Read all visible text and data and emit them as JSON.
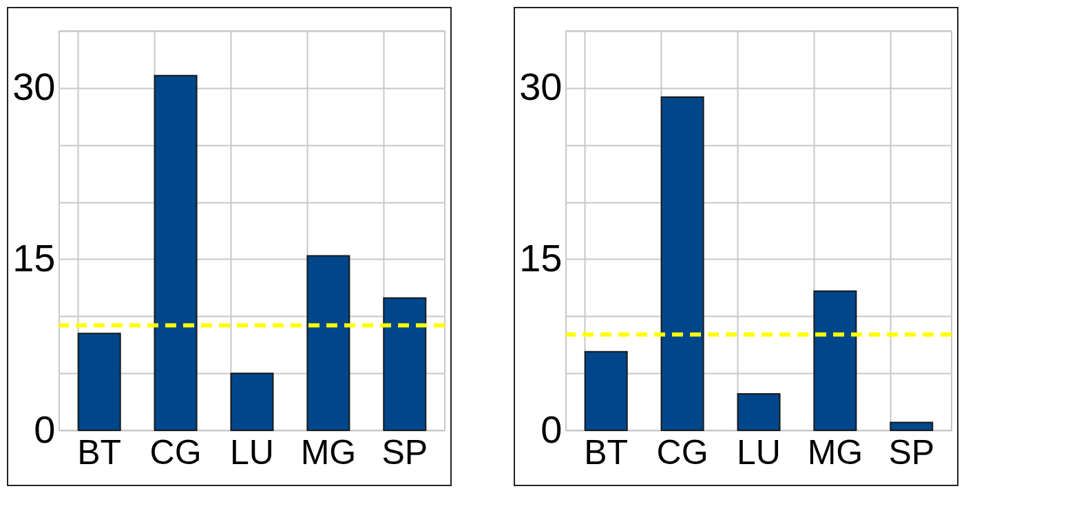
{
  "chart_data": [
    {
      "type": "bar",
      "categories": [
        "BT",
        "CG",
        "LU",
        "MG",
        "SP"
      ],
      "values": [
        8.5,
        31.1,
        5.0,
        15.3,
        11.6
      ],
      "color": "#00468b",
      "ylim": [
        0,
        35
      ],
      "yticks": [
        0,
        {
          "value": 5,
          "label": null
        },
        {
          "value": 10,
          "label": null
        },
        15,
        {
          "value": 20,
          "label": null
        },
        {
          "value": 25,
          "label": null
        },
        30,
        {
          "value": 35,
          "label": null
        }
      ],
      "grid": true,
      "ref_lines": [
        {
          "axis": "y",
          "value": 9.2,
          "color": "#ffff00",
          "line_style": "dashed"
        }
      ]
    },
    {
      "type": "bar",
      "categories": [
        "BT",
        "CG",
        "LU",
        "MG",
        "SP"
      ],
      "values": [
        6.9,
        29.2,
        3.2,
        12.2,
        0.7
      ],
      "color": "#00468b",
      "ylim": [
        0,
        35
      ],
      "yticks": [
        0,
        {
          "value": 5,
          "label": null
        },
        {
          "value": 10,
          "label": null
        },
        15,
        {
          "value": 20,
          "label": null
        },
        {
          "value": 25,
          "label": null
        },
        30,
        {
          "value": 35,
          "label": null
        }
      ],
      "grid": true,
      "ref_lines": [
        {
          "axis": "y",
          "value": 8.4,
          "color": "#ffff00",
          "line_style": "dashed"
        }
      ]
    }
  ]
}
